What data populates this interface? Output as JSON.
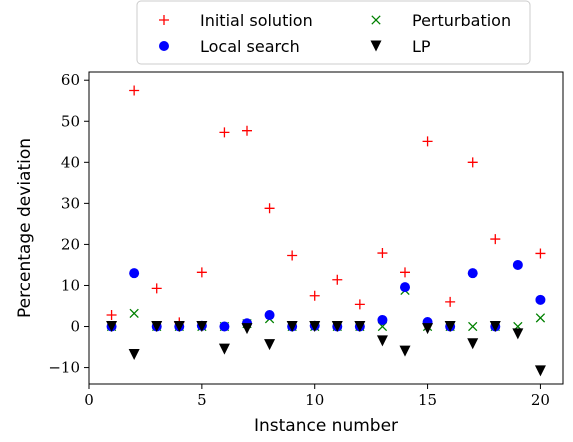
{
  "chart_data": {
    "type": "scatter",
    "xlabel": "Instance number",
    "ylabel": "Percentage deviation",
    "xlim": [
      0,
      21
    ],
    "ylim": [
      -14,
      62
    ],
    "xticks": [
      0,
      5,
      10,
      15,
      20
    ],
    "yticks": [
      -10,
      0,
      10,
      20,
      30,
      40,
      50,
      60
    ],
    "ytick_labels": [
      "−10",
      "0",
      "10",
      "20",
      "30",
      "40",
      "50",
      "60"
    ],
    "grid": false,
    "legend_position": "top-center, outside plot",
    "series": [
      {
        "name": "Initial solution",
        "marker": "plus",
        "color": "#ff0000",
        "x": [
          1,
          2,
          3,
          4,
          5,
          6,
          7,
          8,
          9,
          10,
          11,
          12,
          13,
          14,
          15,
          16,
          17,
          18,
          19,
          20
        ],
        "y": [
          2.8,
          57.5,
          9.3,
          1.0,
          13.2,
          47.3,
          47.7,
          28.8,
          17.3,
          7.5,
          11.4,
          5.4,
          17.9,
          13.2,
          45.1,
          6.0,
          40.0,
          21.3,
          null,
          17.8
        ]
      },
      {
        "name": "Perturbation",
        "marker": "x",
        "color": "#008000",
        "x": [
          1,
          2,
          3,
          4,
          5,
          6,
          7,
          8,
          9,
          10,
          11,
          12,
          13,
          14,
          15,
          16,
          17,
          18,
          19,
          20
        ],
        "y": [
          0.0,
          3.2,
          0.0,
          0.0,
          0.0,
          0.0,
          0.7,
          1.9,
          0.0,
          0.0,
          0.0,
          0.0,
          0.0,
          8.8,
          0.0,
          0.0,
          0.0,
          0.0,
          0.0,
          2.1
        ]
      },
      {
        "name": "Local search",
        "marker": "circle",
        "color": "#0000ff",
        "x": [
          1,
          2,
          3,
          4,
          5,
          6,
          7,
          8,
          9,
          10,
          11,
          12,
          13,
          14,
          15,
          16,
          17,
          18,
          19,
          20
        ],
        "y": [
          0.0,
          13.0,
          0.0,
          0.0,
          0.2,
          0.0,
          0.8,
          2.8,
          0.0,
          0.2,
          0.0,
          0.0,
          1.6,
          9.6,
          1.1,
          0.0,
          13.0,
          0.0,
          15.0,
          6.5
        ]
      },
      {
        "name": "LP",
        "marker": "triangle-down",
        "color": "#000000",
        "x": [
          1,
          2,
          3,
          4,
          5,
          6,
          7,
          8,
          9,
          10,
          11,
          12,
          13,
          14,
          15,
          16,
          17,
          18,
          19,
          20
        ],
        "y": [
          0.0,
          -6.8,
          0.0,
          0.0,
          0.0,
          -5.5,
          -0.5,
          -4.4,
          0.0,
          0.0,
          0.0,
          0.0,
          -3.5,
          -6.0,
          -0.5,
          0.0,
          -4.2,
          0.0,
          -1.8,
          -10.8
        ]
      }
    ],
    "legend": [
      {
        "label": "Initial solution",
        "marker": "plus",
        "color": "#ff0000"
      },
      {
        "label": "Perturbation",
        "marker": "x",
        "color": "#008000"
      },
      {
        "label": "Local search",
        "marker": "circle",
        "color": "#0000ff"
      },
      {
        "label": "LP",
        "marker": "triangle-down",
        "color": "#000000"
      }
    ]
  }
}
